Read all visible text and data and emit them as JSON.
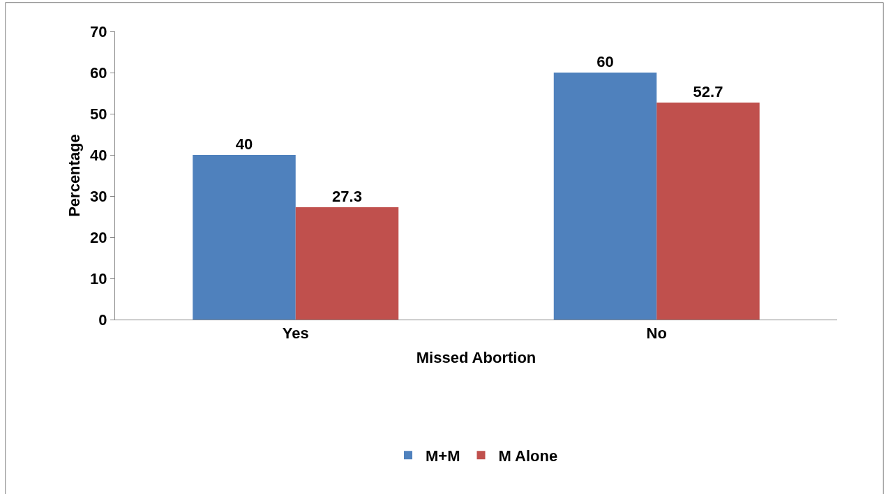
{
  "chart_data": {
    "type": "bar",
    "xlabel": "Missed Abortion",
    "ylabel": "Percentage",
    "categories": [
      "Yes",
      "No"
    ],
    "series": [
      {
        "name": "M+M",
        "color": "#4f81bd",
        "values": [
          40,
          60
        ]
      },
      {
        "name": "M Alone",
        "color": "#c0504d",
        "values": [
          27.3,
          52.7
        ]
      }
    ],
    "ylim": [
      0,
      70
    ],
    "yticks": [
      0,
      10,
      20,
      30,
      40,
      50,
      60,
      70
    ],
    "data_labels": true,
    "legend": "bottom"
  }
}
